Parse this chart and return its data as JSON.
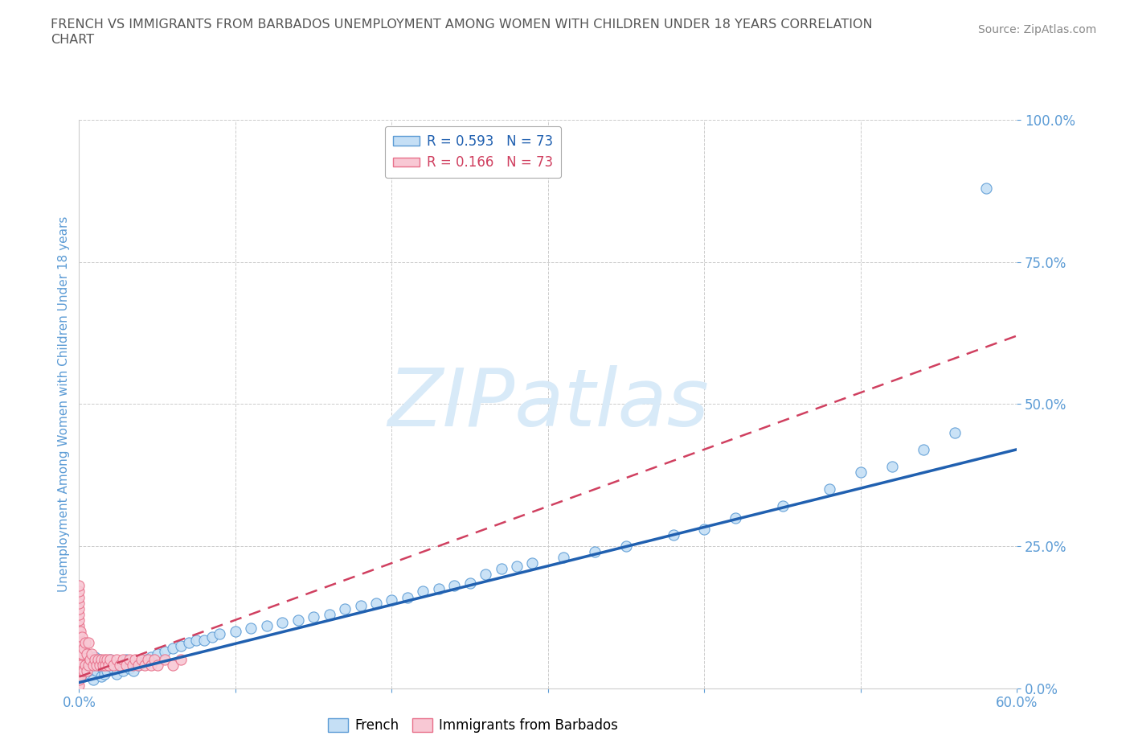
{
  "title_line1": "FRENCH VS IMMIGRANTS FROM BARBADOS UNEMPLOYMENT AMONG WOMEN WITH CHILDREN UNDER 18 YEARS CORRELATION",
  "title_line2": "CHART",
  "source": "Source: ZipAtlas.com",
  "ylabel": "Unemployment Among Women with Children Under 18 years",
  "xlim": [
    0.0,
    0.6
  ],
  "ylim": [
    0.0,
    1.0
  ],
  "xticks": [
    0.0,
    0.1,
    0.2,
    0.3,
    0.4,
    0.5,
    0.6
  ],
  "yticks": [
    0.0,
    0.25,
    0.5,
    0.75,
    1.0
  ],
  "xtick_labels": [
    "0.0%",
    "",
    "",
    "",
    "",
    "",
    "60.0%"
  ],
  "ytick_labels": [
    "0.0%",
    "25.0%",
    "50.0%",
    "75.0%",
    "100.0%"
  ],
  "french_R": 0.593,
  "french_N": 73,
  "barbados_R": 0.166,
  "barbados_N": 73,
  "french_color": "#c5dff5",
  "french_edge_color": "#5b9bd5",
  "barbados_color": "#f8c8d4",
  "barbados_edge_color": "#e8708a",
  "trend_french_color": "#2060b0",
  "trend_barbados_color": "#d04060",
  "background_color": "#ffffff",
  "grid_color": "#cccccc",
  "watermark_text": "ZIPatlas",
  "title_color": "#555555",
  "axis_label_color": "#5b9bd5",
  "tick_label_color": "#5b9bd5",
  "french_scatter_x": [
    0.001,
    0.002,
    0.003,
    0.004,
    0.005,
    0.006,
    0.007,
    0.008,
    0.009,
    0.01,
    0.011,
    0.012,
    0.013,
    0.014,
    0.015,
    0.016,
    0.017,
    0.018,
    0.019,
    0.02,
    0.022,
    0.024,
    0.026,
    0.028,
    0.03,
    0.032,
    0.035,
    0.038,
    0.04,
    0.043,
    0.046,
    0.05,
    0.055,
    0.06,
    0.065,
    0.07,
    0.075,
    0.08,
    0.085,
    0.09,
    0.1,
    0.11,
    0.12,
    0.13,
    0.14,
    0.15,
    0.16,
    0.17,
    0.18,
    0.19,
    0.2,
    0.21,
    0.22,
    0.23,
    0.24,
    0.25,
    0.26,
    0.27,
    0.28,
    0.29,
    0.31,
    0.33,
    0.35,
    0.38,
    0.4,
    0.42,
    0.45,
    0.48,
    0.5,
    0.52,
    0.54,
    0.56,
    0.58
  ],
  "french_scatter_y": [
    0.03,
    0.05,
    0.02,
    0.04,
    0.06,
    0.035,
    0.025,
    0.045,
    0.015,
    0.055,
    0.03,
    0.04,
    0.05,
    0.02,
    0.035,
    0.025,
    0.045,
    0.03,
    0.04,
    0.05,
    0.035,
    0.025,
    0.04,
    0.03,
    0.05,
    0.035,
    0.03,
    0.04,
    0.045,
    0.05,
    0.055,
    0.06,
    0.065,
    0.07,
    0.075,
    0.08,
    0.085,
    0.085,
    0.09,
    0.095,
    0.1,
    0.105,
    0.11,
    0.115,
    0.12,
    0.125,
    0.13,
    0.14,
    0.145,
    0.15,
    0.155,
    0.16,
    0.17,
    0.175,
    0.18,
    0.185,
    0.2,
    0.21,
    0.215,
    0.22,
    0.23,
    0.24,
    0.25,
    0.27,
    0.28,
    0.3,
    0.32,
    0.35,
    0.38,
    0.39,
    0.42,
    0.45,
    0.88
  ],
  "barbados_scatter_x": [
    0.0,
    0.0,
    0.0,
    0.0,
    0.0,
    0.0,
    0.0,
    0.0,
    0.0,
    0.0,
    0.0,
    0.0,
    0.0,
    0.0,
    0.0,
    0.0,
    0.0,
    0.0,
    0.0,
    0.0,
    0.0,
    0.0,
    0.0,
    0.0,
    0.0,
    0.001,
    0.001,
    0.001,
    0.001,
    0.001,
    0.002,
    0.002,
    0.002,
    0.003,
    0.003,
    0.004,
    0.004,
    0.005,
    0.005,
    0.006,
    0.006,
    0.007,
    0.008,
    0.009,
    0.01,
    0.011,
    0.012,
    0.013,
    0.014,
    0.015,
    0.016,
    0.017,
    0.018,
    0.019,
    0.02,
    0.022,
    0.024,
    0.026,
    0.028,
    0.03,
    0.032,
    0.034,
    0.036,
    0.038,
    0.04,
    0.042,
    0.044,
    0.046,
    0.048,
    0.05,
    0.055,
    0.06,
    0.065
  ],
  "barbados_scatter_y": [
    0.02,
    0.03,
    0.04,
    0.05,
    0.06,
    0.07,
    0.08,
    0.09,
    0.1,
    0.11,
    0.12,
    0.13,
    0.14,
    0.15,
    0.16,
    0.17,
    0.18,
    0.005,
    0.015,
    0.025,
    0.035,
    0.045,
    0.055,
    0.065,
    0.075,
    0.02,
    0.04,
    0.06,
    0.08,
    0.1,
    0.03,
    0.06,
    0.09,
    0.03,
    0.07,
    0.04,
    0.08,
    0.03,
    0.06,
    0.04,
    0.08,
    0.05,
    0.06,
    0.04,
    0.05,
    0.04,
    0.05,
    0.04,
    0.05,
    0.04,
    0.05,
    0.04,
    0.05,
    0.04,
    0.05,
    0.04,
    0.05,
    0.04,
    0.05,
    0.04,
    0.05,
    0.04,
    0.05,
    0.04,
    0.05,
    0.04,
    0.05,
    0.04,
    0.05,
    0.04,
    0.05,
    0.04,
    0.05
  ],
  "french_trend_x": [
    0.0,
    0.6
  ],
  "french_trend_y": [
    0.01,
    0.42
  ],
  "barbados_trend_x": [
    0.0,
    0.6
  ],
  "barbados_trend_y": [
    0.02,
    0.62
  ]
}
